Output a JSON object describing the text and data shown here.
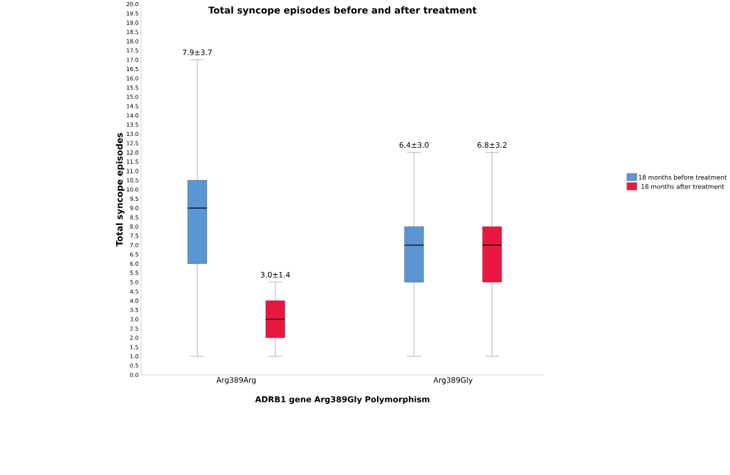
{
  "chart_data": {
    "type": "box",
    "title": "Total syncope episodes before and after treatment",
    "xlabel": "ADRB1 gene Arg389Gly Polymorphism",
    "ylabel": "Total syncope episodes",
    "categories": [
      "Arg389Arg",
      "Arg389Gly"
    ],
    "series": [
      {
        "name": "18 months before treatment",
        "color": "#5a96d2",
        "boxes": [
          {
            "low": 1,
            "q1": 6,
            "median": 9,
            "q3": 10.5,
            "high": 17
          },
          {
            "low": 1,
            "q1": 5,
            "median": 7,
            "q3": 8,
            "high": 12
          }
        ]
      },
      {
        "name": "18 months after treatment",
        "color": "#e8173f",
        "boxes": [
          {
            "low": 1,
            "q1": 2,
            "median": 3,
            "q3": 4,
            "high": 5
          },
          {
            "low": 1,
            "q1": 5,
            "median": 7,
            "q3": 8,
            "high": 12
          }
        ]
      }
    ],
    "annotations": [
      "7.9±3.7",
      "3.0±1.4",
      "6.4±3.0",
      "6.8±3.2"
    ],
    "ylim": [
      0,
      20
    ],
    "yticks": [
      {
        "value": 0,
        "label": "0.0"
      },
      {
        "value": 0.5,
        "label": "0.5"
      },
      {
        "value": 1,
        "label": "1.0"
      },
      {
        "value": 1.5,
        "label": "1.5"
      },
      {
        "value": 2,
        "label": "2.0"
      },
      {
        "value": 2.5,
        "label": "2.5"
      },
      {
        "value": 3,
        "label": "3.0"
      },
      {
        "value": 3.5,
        "label": "3.5"
      },
      {
        "value": 4,
        "label": "4.0"
      },
      {
        "value": 4.5,
        "label": "4.5"
      },
      {
        "value": 5,
        "label": "5.0"
      },
      {
        "value": 5.5,
        "label": "5.5"
      },
      {
        "value": 6,
        "label": "6.0"
      },
      {
        "value": 6.5,
        "label": "6.5"
      },
      {
        "value": 7,
        "label": "7.0"
      },
      {
        "value": 7.5,
        "label": "7.5"
      },
      {
        "value": 8,
        "label": "8.0"
      },
      {
        "value": 8.5,
        "label": "8.5"
      },
      {
        "value": 9,
        "label": "9.0"
      },
      {
        "value": 9.5,
        "label": "9.5"
      },
      {
        "value": 10,
        "label": "10.0"
      },
      {
        "value": 10.5,
        "label": "10.5"
      },
      {
        "value": 11,
        "label": "11.0"
      },
      {
        "value": 11.5,
        "label": "11.5"
      },
      {
        "value": 12,
        "label": "12.0"
      },
      {
        "value": 12.5,
        "label": "12.5"
      },
      {
        "value": 13,
        "label": "13.0"
      },
      {
        "value": 13.5,
        "label": "13.5"
      },
      {
        "value": 14,
        "label": "14.0"
      },
      {
        "value": 14.5,
        "label": "14.5"
      },
      {
        "value": 15,
        "label": "15.0"
      },
      {
        "value": 15.5,
        "label": "15.5"
      },
      {
        "value": 16,
        "label": "16.0"
      },
      {
        "value": 16.5,
        "label": "16.5"
      },
      {
        "value": 17,
        "label": "17.0"
      },
      {
        "value": 17.5,
        "label": "17.5"
      },
      {
        "value": 18,
        "label": "18.0"
      },
      {
        "value": 18.5,
        "label": "18.5"
      },
      {
        "value": 19,
        "label": "19.0"
      },
      {
        "value": 19.5,
        "label": "19.5"
      },
      {
        "value": 20,
        "label": "20.0"
      }
    ],
    "legend": "right"
  }
}
